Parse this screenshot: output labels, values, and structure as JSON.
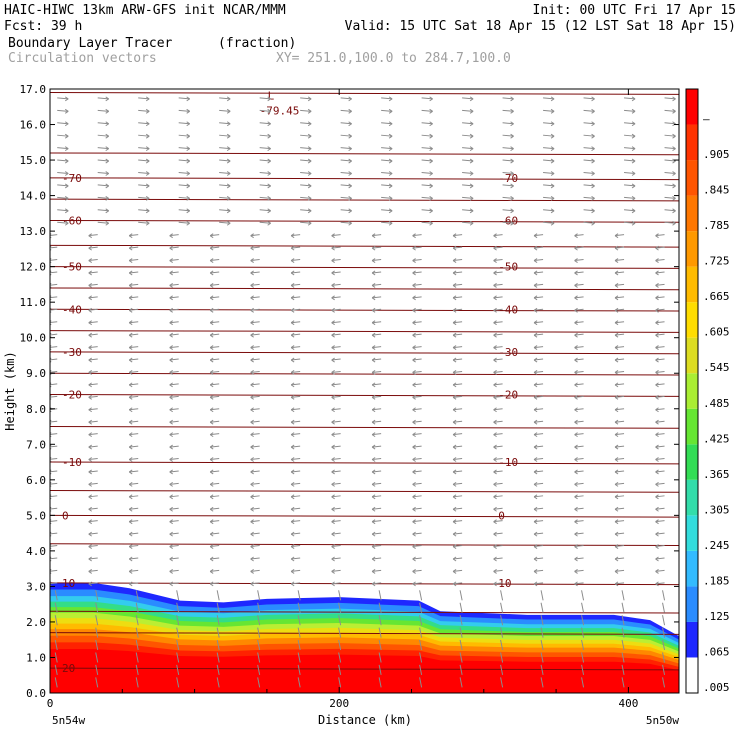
{
  "header": {
    "left_line1": "HAIC-HIWC 13km ARW-GFS init   NCAR/MMM",
    "left_line2": "Fcst:   39 h",
    "right_line1": "Init: 00 UTC Fri 17 Apr 15",
    "right_line2": "Valid: 15 UTC Sat 18 Apr 15 (12 LST Sat 18 Apr 15)",
    "field1_name": "Boundary Layer Tracer",
    "field1_units": "(fraction)",
    "field2_name": "Circulation vectors",
    "cross_section": "XY= 251.0,100.0 to 284.7,100.0"
  },
  "colors": {
    "contour": "#7a0a0a",
    "vector": "#8c8c8c",
    "scale": [
      "#ffffff",
      "#1e28ff",
      "#2a8cff",
      "#33bbff",
      "#33dddd",
      "#33ddaa",
      "#33dd55",
      "#66e633",
      "#aaee33",
      "#dddd22",
      "#ffdd00",
      "#ffbb00",
      "#ff9900",
      "#ff7700",
      "#ff5500",
      "#ff3300",
      "#ff0000"
    ]
  },
  "chart_data": {
    "type": "heatmap",
    "xlabel": "Distance (km)",
    "ylabel": "Height (km)",
    "xlim": [
      0,
      435
    ],
    "ylim": [
      0,
      17
    ],
    "x_ticks": [
      "0",
      "200",
      "400"
    ],
    "y_ticks": [
      "0.0",
      "1.0",
      "2.0",
      "3.0",
      "4.0",
      "5.0",
      "6.0",
      "7.0",
      "8.0",
      "9.0",
      "10.0",
      "11.0",
      "12.0",
      "13.0",
      "14.0",
      "15.0",
      "16.0",
      "17.0"
    ],
    "x_end_labels": {
      "left": "5n54w",
      "right": "5n50w"
    },
    "colorbar_labels": [
      ".005",
      ".065",
      ".125",
      ".185",
      ".245",
      ".305",
      ".365",
      ".425",
      ".485",
      ".545",
      ".605",
      ".665",
      ".725",
      ".785",
      ".845",
      ".905",
      "–"
    ],
    "tracer_top_km": [
      [
        0,
        3.1
      ],
      [
        30,
        3.1
      ],
      [
        55,
        2.95
      ],
      [
        90,
        2.6
      ],
      [
        120,
        2.55
      ],
      [
        150,
        2.65
      ],
      [
        200,
        2.7
      ],
      [
        255,
        2.6
      ],
      [
        270,
        2.3
      ],
      [
        330,
        2.2
      ],
      [
        390,
        2.2
      ],
      [
        415,
        2.05
      ],
      [
        435,
        1.6
      ]
    ],
    "contours": [
      {
        "label": "-79.45",
        "x": 145,
        "y": 16.4,
        "kind": "L"
      },
      {
        "label": "-70",
        "y": 14.5
      },
      {
        "label": "-60",
        "y": 13.3
      },
      {
        "label": "-50",
        "y": 12.0
      },
      {
        "label": "-40",
        "y": 10.8
      },
      {
        "label": "-30",
        "y": 9.6
      },
      {
        "label": "-20",
        "y": 8.4
      },
      {
        "label": "-10",
        "y": 6.5
      },
      {
        "label": "0",
        "y": 5.0
      },
      {
        "label": "10",
        "y": 3.1
      },
      {
        "label": "20",
        "y": 0.7
      }
    ]
  }
}
